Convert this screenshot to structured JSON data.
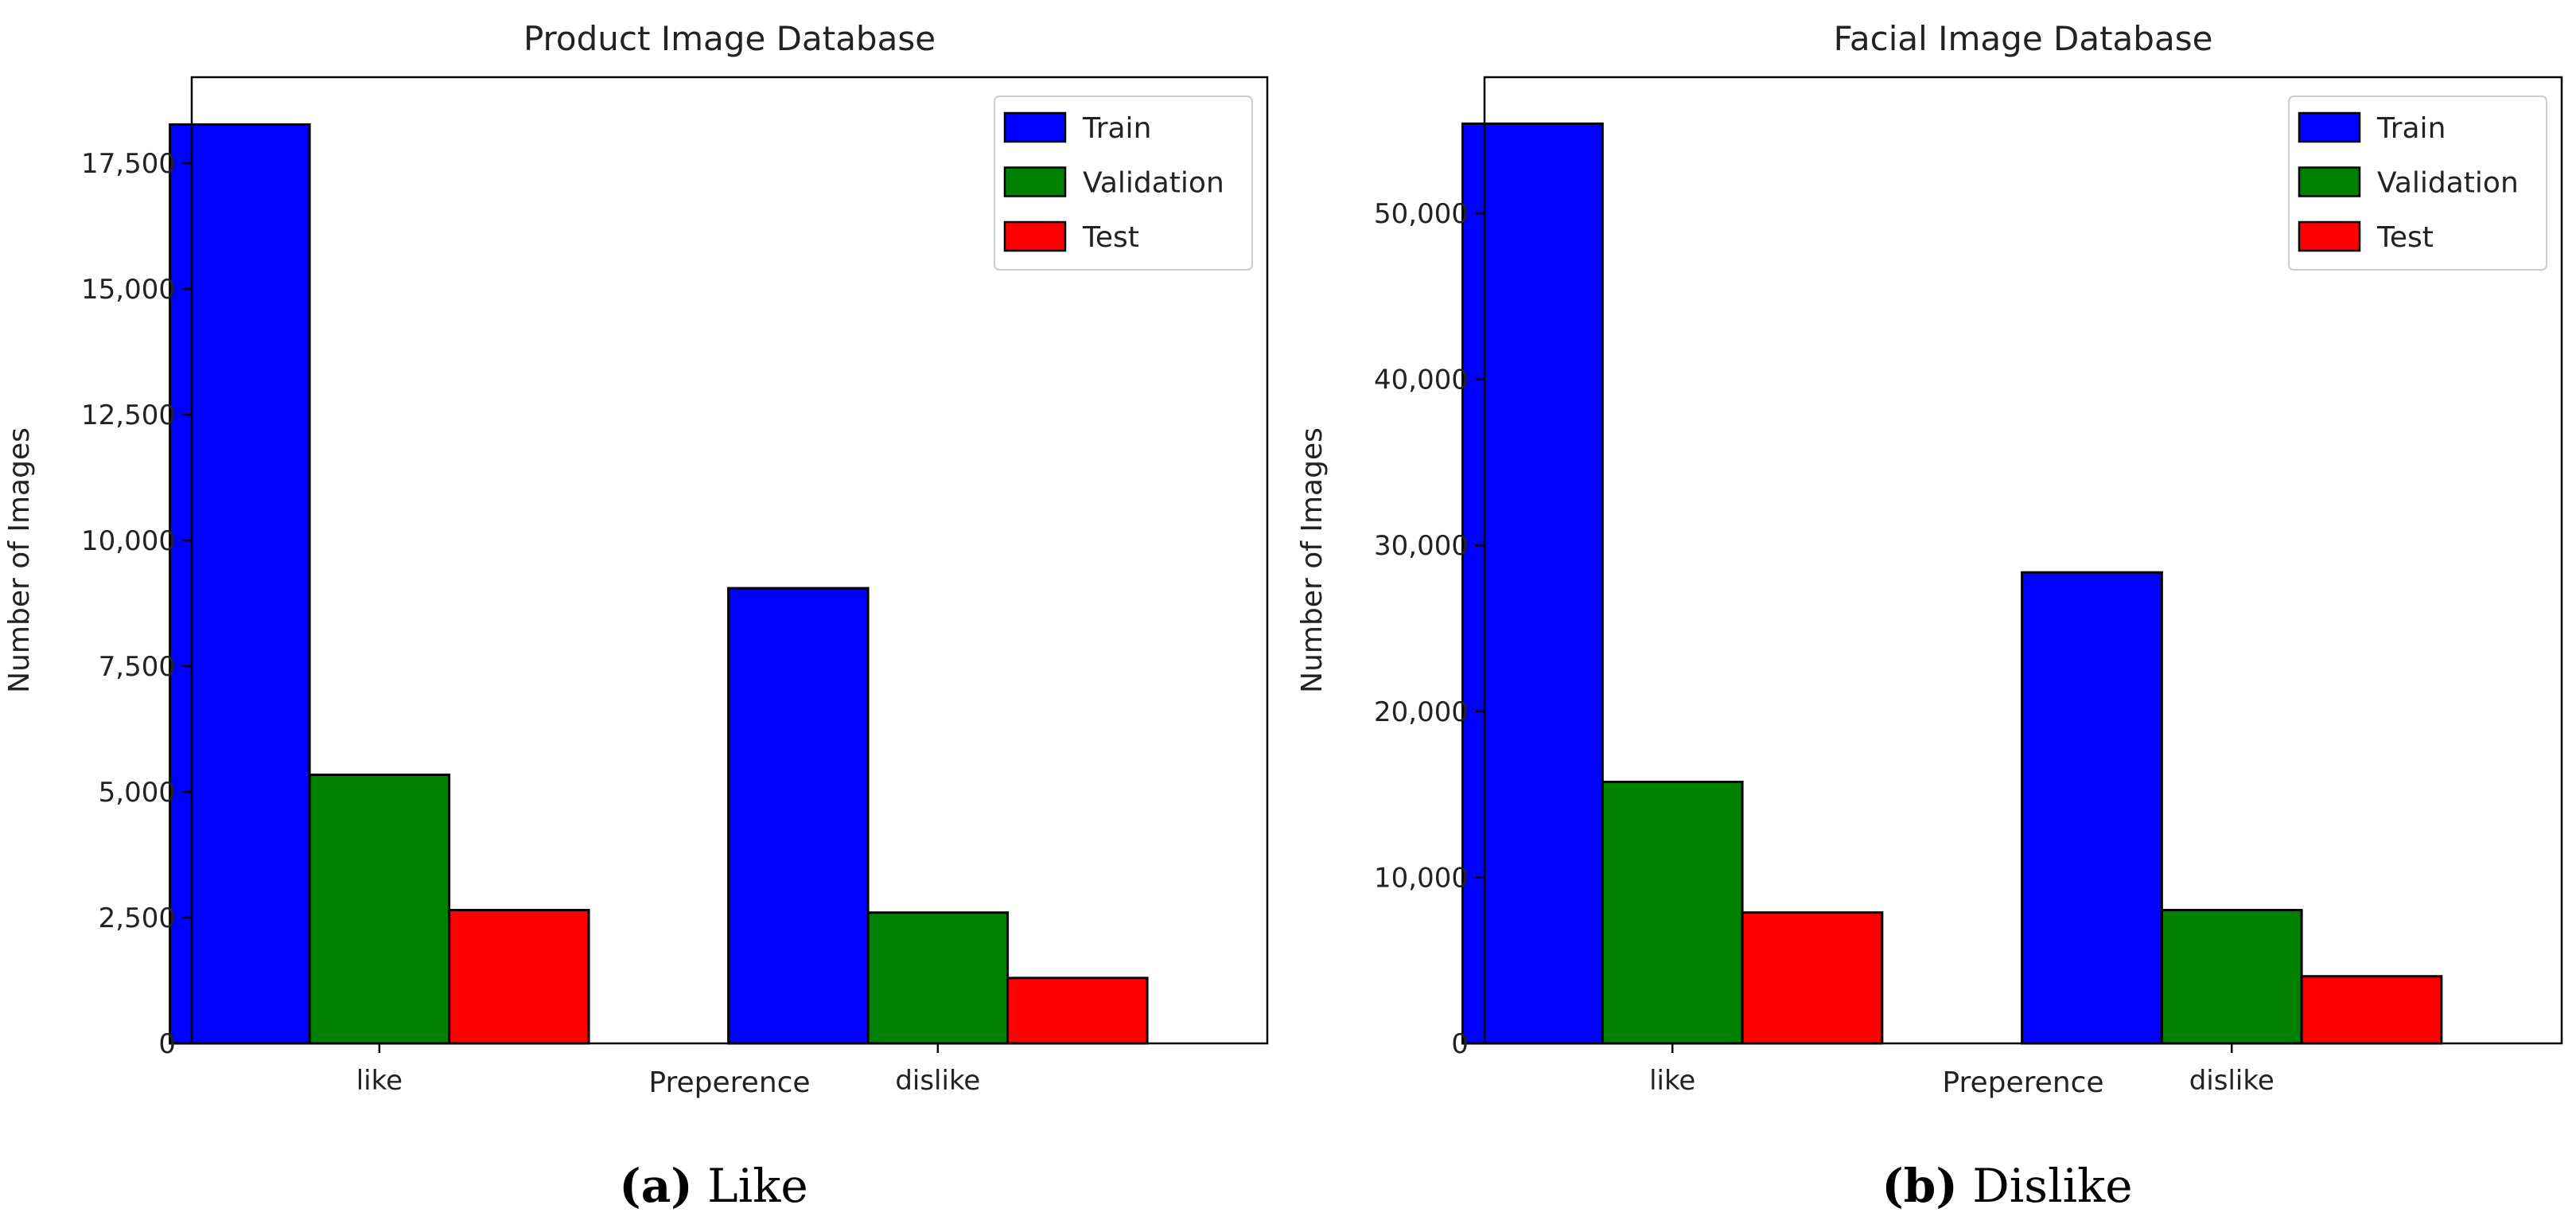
{
  "chart_data": [
    {
      "type": "bar",
      "title": "Product Image Database",
      "caption_label": "(a)",
      "caption_text": "Like",
      "xlabel": "Preperence",
      "ylabel": "Number of Images",
      "categories": [
        "like",
        "dislike"
      ],
      "ylim": [
        0,
        19210
      ],
      "yticks": [
        0,
        2500,
        5000,
        7500,
        10000,
        12500,
        15000,
        17500
      ],
      "ytick_labels": [
        "0",
        "2,500",
        "5,000",
        "7,500",
        "10,000",
        "12,500",
        "15,000",
        "17,500"
      ],
      "legend_position": "top-right",
      "grid": false,
      "series": [
        {
          "name": "Train",
          "color": "#0000ff",
          "values": [
            18270,
            9050
          ]
        },
        {
          "name": "Validation",
          "color": "#008000",
          "values": [
            5340,
            2600
          ]
        },
        {
          "name": "Test",
          "color": "#ff0000",
          "values": [
            2650,
            1300
          ]
        }
      ]
    },
    {
      "type": "bar",
      "title": "Facial Image Database",
      "caption_label": "(b)",
      "caption_text": "Dislike",
      "xlabel": "Preperence",
      "ylabel": "Number of Images",
      "categories": [
        "like",
        "dislike"
      ],
      "ylim": [
        0,
        58200
      ],
      "yticks": [
        0,
        10000,
        20000,
        30000,
        40000,
        50000
      ],
      "ytick_labels": [
        "0",
        "10,000",
        "20,000",
        "30,000",
        "40,000",
        "50,000"
      ],
      "legend_position": "top-right",
      "grid": false,
      "series": [
        {
          "name": "Train",
          "color": "#0000ff",
          "values": [
            55400,
            28370
          ]
        },
        {
          "name": "Validation",
          "color": "#008000",
          "values": [
            15750,
            8030
          ]
        },
        {
          "name": "Test",
          "color": "#ff0000",
          "values": [
            7880,
            4040
          ]
        }
      ]
    }
  ]
}
